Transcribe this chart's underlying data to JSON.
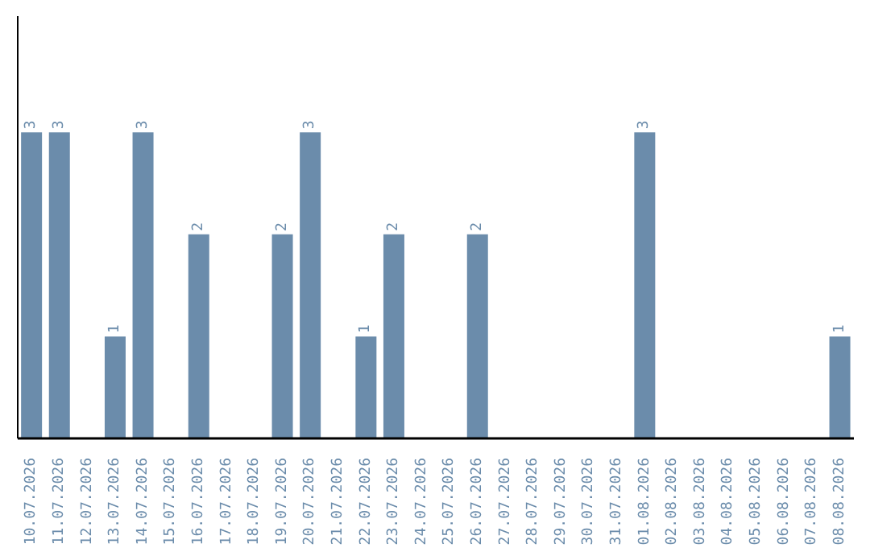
{
  "chart_data": {
    "type": "bar",
    "categories": [
      "10.07.2026",
      "11.07.2026",
      "12.07.2026",
      "13.07.2026",
      "14.07.2026",
      "15.07.2026",
      "16.07.2026",
      "17.07.2026",
      "18.07.2026",
      "19.07.2026",
      "20.07.2026",
      "21.07.2026",
      "22.07.2026",
      "23.07.2026",
      "24.07.2026",
      "25.07.2026",
      "26.07.2026",
      "27.07.2026",
      "28.07.2026",
      "29.07.2026",
      "30.07.2026",
      "31.07.2026",
      "01.08.2026",
      "02.08.2026",
      "03.08.2026",
      "04.08.2026",
      "05.08.2026",
      "06.08.2026",
      "07.08.2026",
      "08.08.2026"
    ],
    "values": [
      3,
      3,
      0,
      1,
      3,
      0,
      2,
      0,
      0,
      2,
      3,
      0,
      1,
      2,
      0,
      0,
      2,
      0,
      0,
      0,
      0,
      0,
      3,
      0,
      0,
      0,
      0,
      0,
      0,
      1
    ],
    "value_labels": [
      "3",
      "3",
      null,
      "1",
      "3",
      null,
      "2",
      null,
      null,
      "2",
      "3",
      null,
      "1",
      "2",
      null,
      null,
      "2",
      null,
      null,
      null,
      null,
      null,
      "3",
      null,
      null,
      null,
      null,
      null,
      null,
      "1"
    ],
    "color": "#6b8cab",
    "tick_labels": "x",
    "grid": false,
    "legend": false
  }
}
